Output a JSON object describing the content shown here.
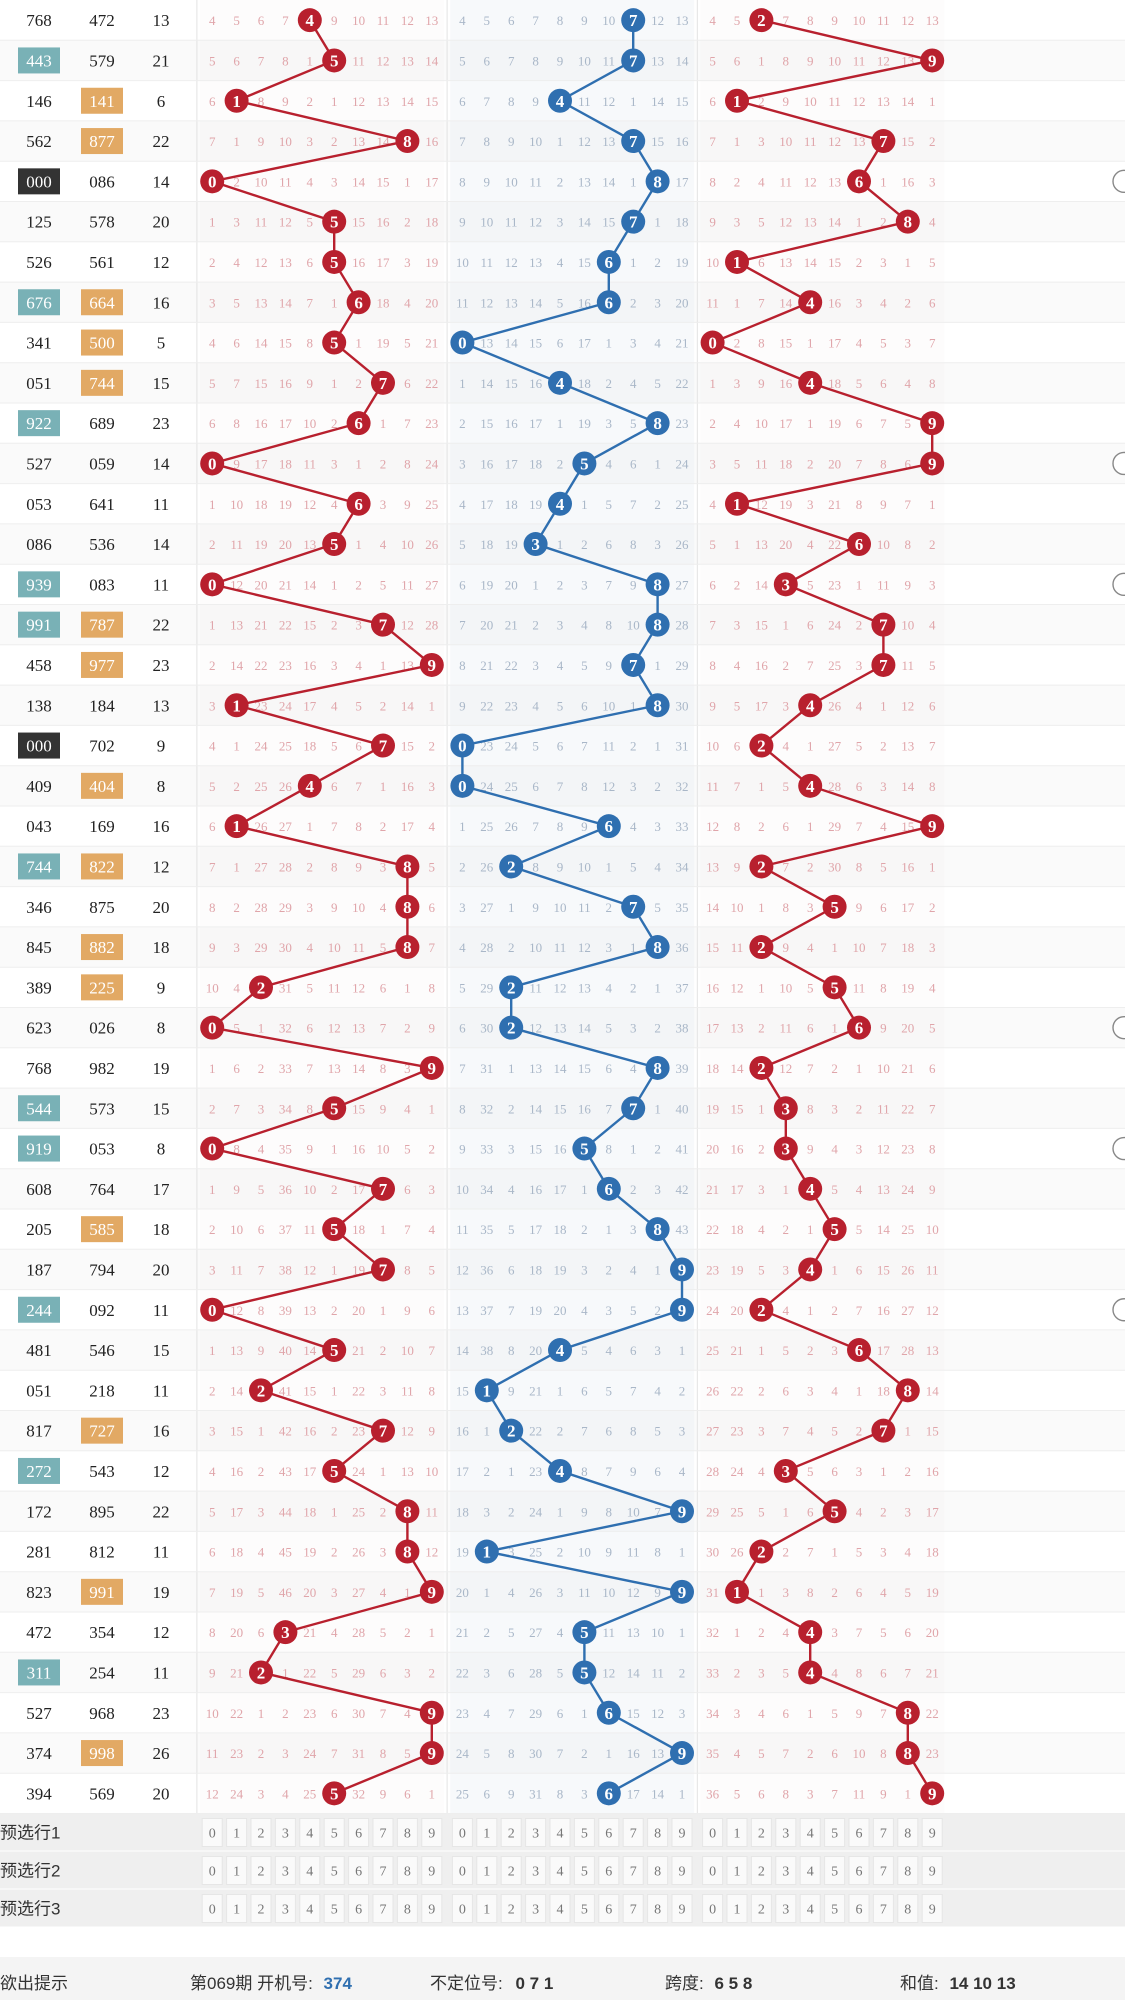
{
  "chart_data": {
    "type": "table",
    "rows": [
      {
        "a": "768",
        "b": "472",
        "c": "13",
        "ca": "",
        "cb": "",
        "g1": 4,
        "g2": 7,
        "g3": 2
      },
      {
        "a": "443",
        "b": "579",
        "c": "21",
        "ca": "teal",
        "cb": "",
        "g1": 5,
        "g2": 7,
        "g3": 9
      },
      {
        "a": "146",
        "b": "141",
        "c": "6",
        "ca": "",
        "cb": "orange",
        "g1": 1,
        "g2": 4,
        "g3": 1
      },
      {
        "a": "562",
        "b": "877",
        "c": "22",
        "ca": "",
        "cb": "orange",
        "g1": 8,
        "g2": 7,
        "g3": 7
      },
      {
        "a": "000",
        "b": "086",
        "c": "14",
        "ca": "dark",
        "cb": "",
        "g1": 0,
        "g2": 8,
        "g3": 6
      },
      {
        "a": "125",
        "b": "578",
        "c": "20",
        "ca": "",
        "cb": "",
        "g1": 5,
        "g2": 7,
        "g3": 8
      },
      {
        "a": "526",
        "b": "561",
        "c": "12",
        "ca": "",
        "cb": "",
        "g1": 5,
        "g2": 6,
        "g3": 1
      },
      {
        "a": "676",
        "b": "664",
        "c": "16",
        "ca": "teal",
        "cb": "orange",
        "g1": 6,
        "g2": 6,
        "g3": 4
      },
      {
        "a": "341",
        "b": "500",
        "c": "5",
        "ca": "",
        "cb": "orange",
        "g1": 5,
        "g2": 0,
        "g3": 0
      },
      {
        "a": "051",
        "b": "744",
        "c": "15",
        "ca": "",
        "cb": "orange",
        "g1": 7,
        "g2": 4,
        "g3": 4
      },
      {
        "a": "922",
        "b": "689",
        "c": "23",
        "ca": "teal",
        "cb": "",
        "g1": 6,
        "g2": 8,
        "g3": 9
      },
      {
        "a": "527",
        "b": "059",
        "c": "14",
        "ca": "",
        "cb": "",
        "g1": 0,
        "g2": 5,
        "g3": 9
      },
      {
        "a": "053",
        "b": "641",
        "c": "11",
        "ca": "",
        "cb": "",
        "g1": 6,
        "g2": 4,
        "g3": 1
      },
      {
        "a": "086",
        "b": "536",
        "c": "14",
        "ca": "",
        "cb": "",
        "g1": 5,
        "g2": 3,
        "g3": 6
      },
      {
        "a": "939",
        "b": "083",
        "c": "11",
        "ca": "teal",
        "cb": "",
        "g1": 0,
        "g2": 8,
        "g3": 3
      },
      {
        "a": "991",
        "b": "787",
        "c": "22",
        "ca": "teal",
        "cb": "orange",
        "g1": 7,
        "g2": 8,
        "g3": 7
      },
      {
        "a": "458",
        "b": "977",
        "c": "23",
        "ca": "",
        "cb": "orange",
        "g1": 9,
        "g2": 7,
        "g3": 7
      },
      {
        "a": "138",
        "b": "184",
        "c": "13",
        "ca": "",
        "cb": "",
        "g1": 1,
        "g2": 8,
        "g3": 4
      },
      {
        "a": "000",
        "b": "702",
        "c": "9",
        "ca": "dark",
        "cb": "",
        "g1": 7,
        "g2": 0,
        "g3": 2
      },
      {
        "a": "409",
        "b": "404",
        "c": "8",
        "ca": "",
        "cb": "orange",
        "g1": 4,
        "g2": 0,
        "g3": 4
      },
      {
        "a": "043",
        "b": "169",
        "c": "16",
        "ca": "",
        "cb": "",
        "g1": 1,
        "g2": 6,
        "g3": 9
      },
      {
        "a": "744",
        "b": "822",
        "c": "12",
        "ca": "teal",
        "cb": "orange",
        "g1": 8,
        "g2": 2,
        "g3": 2
      },
      {
        "a": "346",
        "b": "875",
        "c": "20",
        "ca": "",
        "cb": "",
        "g1": 8,
        "g2": 7,
        "g3": 5
      },
      {
        "a": "845",
        "b": "882",
        "c": "18",
        "ca": "",
        "cb": "orange",
        "g1": 8,
        "g2": 8,
        "g3": 2
      },
      {
        "a": "389",
        "b": "225",
        "c": "9",
        "ca": "",
        "cb": "orange",
        "g1": 2,
        "g2": 2,
        "g3": 5
      },
      {
        "a": "623",
        "b": "026",
        "c": "8",
        "ca": "",
        "cb": "",
        "g1": 0,
        "g2": 2,
        "g3": 6
      },
      {
        "a": "768",
        "b": "982",
        "c": "19",
        "ca": "",
        "cb": "",
        "g1": 9,
        "g2": 8,
        "g3": 2
      },
      {
        "a": "544",
        "b": "573",
        "c": "15",
        "ca": "teal",
        "cb": "",
        "g1": 5,
        "g2": 7,
        "g3": 3
      },
      {
        "a": "919",
        "b": "053",
        "c": "8",
        "ca": "teal",
        "cb": "",
        "g1": 0,
        "g2": 5,
        "g3": 3
      },
      {
        "a": "608",
        "b": "764",
        "c": "17",
        "ca": "",
        "cb": "",
        "g1": 7,
        "g2": 6,
        "g3": 4
      },
      {
        "a": "205",
        "b": "585",
        "c": "18",
        "ca": "",
        "cb": "orange",
        "g1": 5,
        "g2": 8,
        "g3": 5
      },
      {
        "a": "187",
        "b": "794",
        "c": "20",
        "ca": "",
        "cb": "",
        "g1": 7,
        "g2": 9,
        "g3": 4
      },
      {
        "a": "244",
        "b": "092",
        "c": "11",
        "ca": "teal",
        "cb": "",
        "g1": 0,
        "g2": 9,
        "g3": 2
      },
      {
        "a": "481",
        "b": "546",
        "c": "15",
        "ca": "",
        "cb": "",
        "g1": 5,
        "g2": 4,
        "g3": 6
      },
      {
        "a": "051",
        "b": "218",
        "c": "11",
        "ca": "",
        "cb": "",
        "g1": 2,
        "g2": 1,
        "g3": 8
      },
      {
        "a": "817",
        "b": "727",
        "c": "16",
        "ca": "",
        "cb": "orange",
        "g1": 7,
        "g2": 2,
        "g3": 7
      },
      {
        "a": "272",
        "b": "543",
        "c": "12",
        "ca": "teal",
        "cb": "",
        "g1": 5,
        "g2": 4,
        "g3": 3
      },
      {
        "a": "172",
        "b": "895",
        "c": "22",
        "ca": "",
        "cb": "",
        "g1": 8,
        "g2": 9,
        "g3": 5
      },
      {
        "a": "281",
        "b": "812",
        "c": "11",
        "ca": "",
        "cb": "",
        "g1": 8,
        "g2": 1,
        "g3": 2
      },
      {
        "a": "823",
        "b": "991",
        "c": "19",
        "ca": "",
        "cb": "orange",
        "g1": 9,
        "g2": 9,
        "g3": 1
      },
      {
        "a": "472",
        "b": "354",
        "c": "12",
        "ca": "",
        "cb": "",
        "g1": 3,
        "g2": 5,
        "g3": 4
      },
      {
        "a": "311",
        "b": "254",
        "c": "11",
        "ca": "teal",
        "cb": "",
        "g1": 2,
        "g2": 5,
        "g3": 4
      },
      {
        "a": "527",
        "b": "968",
        "c": "23",
        "ca": "",
        "cb": "",
        "g1": 9,
        "g2": 6,
        "g3": 8
      },
      {
        "a": "374",
        "b": "998",
        "c": "26",
        "ca": "",
        "cb": "orange",
        "g1": 9,
        "g2": 9,
        "g3": 8
      },
      {
        "a": "394",
        "b": "569",
        "c": "20",
        "ca": "",
        "cb": "",
        "g1": 5,
        "g2": 6,
        "g3": 9
      }
    ],
    "select_rows": [
      "预选行1",
      "预选行2",
      "预选行3"
    ],
    "digits": [
      "0",
      "1",
      "2",
      "3",
      "4",
      "5",
      "6",
      "7",
      "8",
      "9"
    ]
  },
  "footer": {
    "label": "欲出提示",
    "issue": "第069期 开机号:",
    "issue_value": "374",
    "undetermined_label": "不定位号:",
    "undetermined_value": "0 7 1",
    "span_label": "跨度:",
    "span_value": "6 5 8",
    "sum_label": "和值:",
    "sum_value": "14 10 13"
  },
  "colors": {
    "red": "#b8202e",
    "blue": "#2f6fb0",
    "teal": "#79b1b6",
    "orange": "#e2a964",
    "dark": "#333333",
    "missing_red": "#e0a5aa",
    "missing_blue": "#a9b7c8"
  }
}
